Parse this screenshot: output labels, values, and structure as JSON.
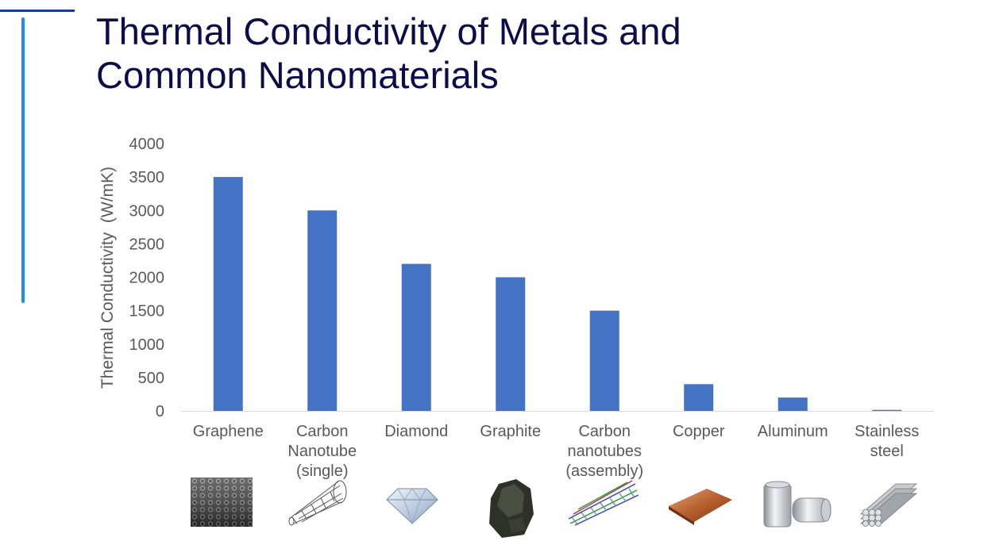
{
  "slide": {
    "title_line1": "Thermal Conductivity of Metals and",
    "title_line2": "Common Nanomaterials"
  },
  "colors": {
    "bar": "#4472c4",
    "title": "#0c0c4a",
    "accent_line": "#1e8fe6",
    "top_rule": "#1f3a93",
    "axis_text": "#595959"
  },
  "chart_data": {
    "type": "bar",
    "title": "",
    "ylabel": "Thermal Conductivity  (W/mK)",
    "xlabel": "",
    "ylim": [
      0,
      4000
    ],
    "yticks": [
      0,
      500,
      1000,
      1500,
      2000,
      2500,
      3000,
      3500,
      4000
    ],
    "grid": false,
    "categories": [
      [
        "Graphene"
      ],
      [
        "Carbon",
        "Nanotube",
        "(single)"
      ],
      [
        "Diamond"
      ],
      [
        "Graphite"
      ],
      [
        "Carbon",
        "nanotubes",
        "(assembly)"
      ],
      [
        "Copper"
      ],
      [
        "Aluminum"
      ],
      [
        "Stainless",
        "steel"
      ]
    ],
    "values": [
      3500,
      3000,
      2200,
      2000,
      1500,
      400,
      200,
      15
    ]
  },
  "images": [
    {
      "icon": "graphene-lattice-icon"
    },
    {
      "icon": "carbon-nanotube-icon"
    },
    {
      "icon": "diamond-icon"
    },
    {
      "icon": "graphite-rock-icon"
    },
    {
      "icon": "nanotube-assembly-icon"
    },
    {
      "icon": "copper-sheet-icon"
    },
    {
      "icon": "aluminum-can-icon"
    },
    {
      "icon": "steel-rods-icon"
    }
  ]
}
